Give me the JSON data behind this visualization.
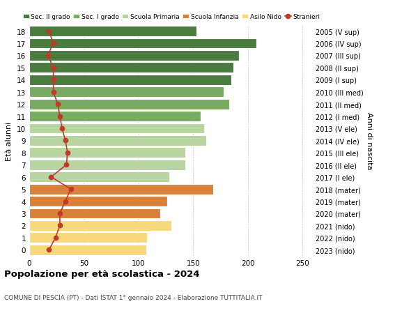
{
  "ages": [
    18,
    17,
    16,
    15,
    14,
    13,
    12,
    11,
    10,
    9,
    8,
    7,
    6,
    5,
    4,
    3,
    2,
    1,
    0
  ],
  "right_labels": [
    "2005 (V sup)",
    "2006 (IV sup)",
    "2007 (III sup)",
    "2008 (II sup)",
    "2009 (I sup)",
    "2010 (III med)",
    "2011 (II med)",
    "2012 (I med)",
    "2013 (V ele)",
    "2014 (IV ele)",
    "2015 (III ele)",
    "2016 (II ele)",
    "2017 (I ele)",
    "2018 (mater)",
    "2019 (mater)",
    "2020 (mater)",
    "2021 (nido)",
    "2022 (nido)",
    "2023 (nido)"
  ],
  "bar_values": [
    153,
    208,
    192,
    187,
    185,
    178,
    183,
    157,
    160,
    162,
    143,
    143,
    128,
    168,
    126,
    120,
    130,
    108,
    107
  ],
  "stranieri_values": [
    18,
    22,
    17,
    22,
    22,
    22,
    26,
    28,
    30,
    33,
    35,
    34,
    20,
    38,
    33,
    28,
    28,
    24,
    18
  ],
  "bar_colors": [
    "#4a7c40",
    "#4a7c40",
    "#4a7c40",
    "#4a7c40",
    "#4a7c40",
    "#7aab62",
    "#7aab62",
    "#7aab62",
    "#b8d4a0",
    "#b8d4a0",
    "#b8d4a0",
    "#b8d4a0",
    "#b8d4a0",
    "#d9813a",
    "#d9813a",
    "#d9813a",
    "#f5d97a",
    "#f5d97a",
    "#f5d97a"
  ],
  "legend_labels": [
    "Sec. II grado",
    "Sec. I grado",
    "Scuola Primaria",
    "Scuola Infanzia",
    "Asilo Nido",
    "Stranieri"
  ],
  "legend_colors": [
    "#4a7c40",
    "#7aab62",
    "#b8d4a0",
    "#d9813a",
    "#f5d97a",
    "#c0392b"
  ],
  "ylabel_left": "Età alunni",
  "ylabel_right": "Anni di nascita",
  "title": "Popolazione per età scolastica - 2024",
  "subtitle": "COMUNE DI PESCIA (PT) - Dati ISTAT 1° gennaio 2024 - Elaborazione TUTTITALIA.IT",
  "xlim": [
    0,
    260
  ],
  "xticks": [
    0,
    50,
    100,
    150,
    200,
    250
  ],
  "stranieri_color": "#c0392b",
  "bg_color": "#ffffff",
  "grid_color": "#cccccc"
}
